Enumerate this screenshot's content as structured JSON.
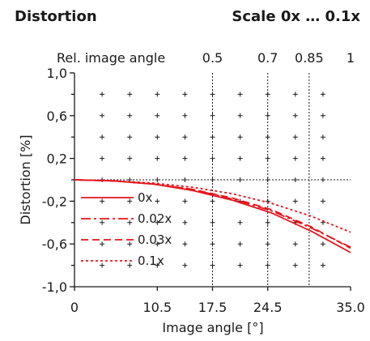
{
  "chart_data": {
    "type": "line",
    "title": "Distortion",
    "scale_label": "Scale 0x … 0.1x",
    "xlabel": "Image angle [°]",
    "ylabel": "Distortion [%]",
    "top_axis_label": "Rel. image angle",
    "xlim": [
      0,
      35
    ],
    "ylim": [
      -1.0,
      1.0
    ],
    "x_ticks": [
      0,
      10.5,
      17.5,
      24.5,
      35.0
    ],
    "x_tick_labels": [
      "0",
      "10.5",
      "17.5",
      "24.5",
      "35.0"
    ],
    "y_ticks": [
      1.0,
      0.6,
      0.2,
      -0.2,
      -0.6,
      -1.0
    ],
    "y_tick_labels": [
      "1,0",
      "0,6",
      "0,2",
      "-0,2",
      "-0,6",
      "-1,0"
    ],
    "top_ticks": [
      {
        "x": 17.5,
        "label": "0.5"
      },
      {
        "x": 24.5,
        "label": "0.7"
      },
      {
        "x": 29.75,
        "label": "0.85"
      },
      {
        "x": 35.0,
        "label": "1"
      }
    ],
    "grid": "plus-marks with dotted reference lines at relative angles 0.5, 0.7, 0.85",
    "legend": "bottom-left",
    "series_color": "#e8141c",
    "series": [
      {
        "name": "0x",
        "dash": "solid",
        "x": [
          0,
          5,
          10,
          15,
          20,
          25,
          30,
          35
        ],
        "y": [
          0,
          -0.01,
          -0.04,
          -0.1,
          -0.19,
          -0.31,
          -0.48,
          -0.68
        ]
      },
      {
        "name": "0.02x",
        "dash": "dashdot",
        "x": [
          0,
          5,
          10,
          15,
          20,
          25,
          30,
          35
        ],
        "y": [
          0,
          -0.01,
          -0.04,
          -0.09,
          -0.18,
          -0.29,
          -0.45,
          -0.63
        ]
      },
      {
        "name": "0.03x",
        "dash": "dashed",
        "x": [
          0,
          5,
          10,
          15,
          20,
          25,
          30,
          35
        ],
        "y": [
          0,
          -0.01,
          -0.04,
          -0.09,
          -0.17,
          -0.28,
          -0.44,
          -0.64
        ]
      },
      {
        "name": "0.1x",
        "dash": "dotted",
        "x": [
          0,
          5,
          10,
          15,
          20,
          25,
          30,
          35
        ],
        "y": [
          0,
          -0.01,
          -0.03,
          -0.07,
          -0.13,
          -0.22,
          -0.34,
          -0.49
        ]
      }
    ]
  }
}
